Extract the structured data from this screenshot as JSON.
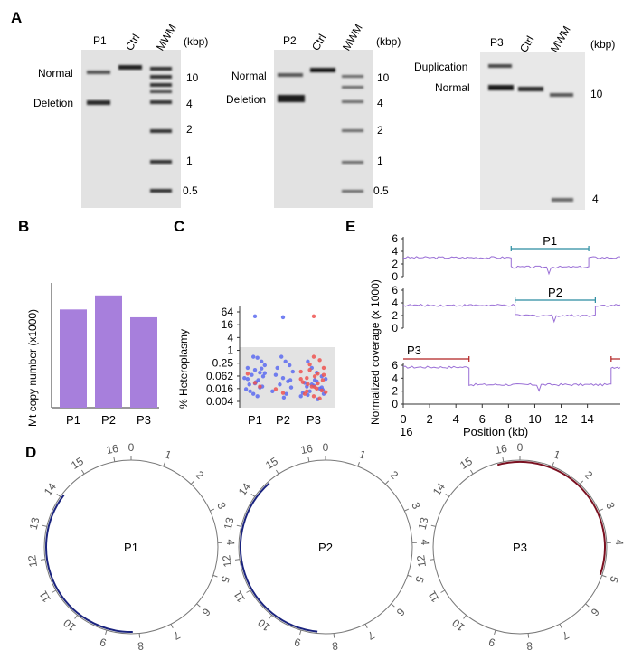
{
  "panel_labels": {
    "a": "A",
    "b": "B",
    "c": "C",
    "d": "D",
    "e": "E"
  },
  "gel_1": {
    "lanes": [
      "P1",
      "Ctrl",
      "MWM"
    ],
    "unit": "(kbp)",
    "band_labels": [
      "Normal",
      "Deletion"
    ],
    "ladder": [
      "10",
      "4",
      "2",
      "1",
      "0.5"
    ]
  },
  "gel_2": {
    "lanes": [
      "P2",
      "Ctrl",
      "MWM"
    ],
    "unit": "(kbp)",
    "band_labels": [
      "Normal",
      "Deletion"
    ],
    "ladder": [
      "10",
      "4",
      "2",
      "1",
      "0.5"
    ]
  },
  "gel_3": {
    "lanes": [
      "P3",
      "Ctrl",
      "MWM"
    ],
    "unit": "(kbp)",
    "band_labels": [
      "Duplication",
      "Normal"
    ],
    "ladder": [
      "10",
      "4"
    ]
  },
  "circles": [
    {
      "name": "P1",
      "ticks": [
        "0",
        "1",
        "2",
        "3",
        "4",
        "5",
        "6",
        "7",
        "8",
        "9",
        "10",
        "11",
        "12",
        "13",
        "14",
        "15",
        "16"
      ]
    },
    {
      "name": "P2",
      "ticks": [
        "0",
        "1",
        "2",
        "3",
        "4",
        "5",
        "6",
        "7",
        "8",
        "9",
        "10",
        "11",
        "12",
        "13",
        "14",
        "15",
        "16"
      ]
    },
    {
      "name": "P3",
      "ticks": [
        "0",
        "1",
        "2",
        "3",
        "4",
        "5",
        "6",
        "7",
        "8",
        "9",
        "10",
        "11",
        "12",
        "13",
        "14",
        "15",
        "16"
      ]
    }
  ],
  "colors": {
    "bar": "#a77fdc",
    "coverage": "#9a6fd6",
    "span_p1p2": "#2a8ca0",
    "span_p3": "#b02020",
    "arc_del": "#1a237e",
    "arc_dup": "#7a1020",
    "red_dot": "#ef5350",
    "blue_dot": "#5c6bf0"
  },
  "chart_data": [
    {
      "type": "bar",
      "title": "",
      "categories": [
        "P1",
        "P2",
        "P3"
      ],
      "values": [
        6.3,
        7.2,
        5.8
      ],
      "ylabel": "Mt copy number (x1000)",
      "xlabel": "",
      "ylim": [
        0,
        8
      ]
    },
    {
      "type": "scatter",
      "ylabel": "% Heteroplasmy",
      "categories": [
        "P1",
        "P2",
        "P3"
      ],
      "y_scale": "log",
      "y_ticks": [
        "64",
        "16",
        "4",
        "1",
        "0.25",
        "0.062",
        "0.016",
        "0.004"
      ],
      "shaded_range": [
        0.004,
        1
      ],
      "series": [
        {
          "name": "blue",
          "points": [
            {
              "group": "P1",
              "y": 40
            },
            {
              "group": "P1",
              "y": 0.5
            },
            {
              "group": "P1",
              "y": 0.45
            },
            {
              "group": "P1",
              "y": 0.3
            },
            {
              "group": "P1",
              "y": 0.2
            },
            {
              "group": "P1",
              "y": 0.15
            },
            {
              "group": "P1",
              "y": 0.12
            },
            {
              "group": "P1",
              "y": 0.09
            },
            {
              "group": "P1",
              "y": 0.07
            },
            {
              "group": "P1",
              "y": 0.06
            },
            {
              "group": "P1",
              "y": 0.05
            },
            {
              "group": "P1",
              "y": 0.04
            },
            {
              "group": "P1",
              "y": 0.032
            },
            {
              "group": "P1",
              "y": 0.025
            },
            {
              "group": "P1",
              "y": 0.02
            },
            {
              "group": "P1",
              "y": 0.015
            },
            {
              "group": "P1",
              "y": 0.012
            },
            {
              "group": "P1",
              "y": 0.009
            },
            {
              "group": "P1",
              "y": 0.007
            },
            {
              "group": "P1",
              "y": 0.14
            },
            {
              "group": "P1",
              "y": 0.085
            },
            {
              "group": "P1",
              "y": 0.045
            },
            {
              "group": "P1",
              "y": 0.028
            },
            {
              "group": "P1",
              "y": 0.018
            },
            {
              "group": "P2",
              "y": 36
            },
            {
              "group": "P2",
              "y": 0.5
            },
            {
              "group": "P2",
              "y": 0.3
            },
            {
              "group": "P2",
              "y": 0.2
            },
            {
              "group": "P2",
              "y": 0.1
            },
            {
              "group": "P2",
              "y": 0.07
            },
            {
              "group": "P2",
              "y": 0.05
            },
            {
              "group": "P2",
              "y": 0.035
            },
            {
              "group": "P2",
              "y": 0.025
            },
            {
              "group": "P2",
              "y": 0.018
            },
            {
              "group": "P2",
              "y": 0.012
            },
            {
              "group": "P2",
              "y": 0.009
            },
            {
              "group": "P2",
              "y": 0.006
            },
            {
              "group": "P2",
              "y": 0.15
            },
            {
              "group": "P2",
              "y": 0.04
            },
            {
              "group": "P3",
              "y": 0.3
            },
            {
              "group": "P3",
              "y": 0.15
            },
            {
              "group": "P3",
              "y": 0.09
            },
            {
              "group": "P3",
              "y": 0.06
            },
            {
              "group": "P3",
              "y": 0.045
            },
            {
              "group": "P3",
              "y": 0.03
            },
            {
              "group": "P3",
              "y": 0.022
            },
            {
              "group": "P3",
              "y": 0.016
            },
            {
              "group": "P3",
              "y": 0.012
            },
            {
              "group": "P3",
              "y": 0.009
            },
            {
              "group": "P3",
              "y": 0.007
            },
            {
              "group": "P3",
              "y": 0.005
            },
            {
              "group": "P3",
              "y": 0.04
            },
            {
              "group": "P3",
              "y": 0.02
            },
            {
              "group": "P3",
              "y": 0.014
            },
            {
              "group": "P3",
              "y": 0.01
            },
            {
              "group": "P3",
              "y": 0.008
            },
            {
              "group": "P3",
              "y": 0.025
            },
            {
              "group": "P3",
              "y": 0.035
            },
            {
              "group": "P3",
              "y": 0.018
            }
          ]
        },
        {
          "name": "red",
          "points": [
            {
              "group": "P1",
              "y": 0.08
            },
            {
              "group": "P1",
              "y": 0.03
            },
            {
              "group": "P1",
              "y": 0.02
            },
            {
              "group": "P2",
              "y": 0.015
            },
            {
              "group": "P2",
              "y": 0.01
            },
            {
              "group": "P3",
              "y": 40
            },
            {
              "group": "P3",
              "y": 0.5
            },
            {
              "group": "P3",
              "y": 0.35
            },
            {
              "group": "P3",
              "y": 0.22
            },
            {
              "group": "P3",
              "y": 0.15
            },
            {
              "group": "P3",
              "y": 0.1
            },
            {
              "group": "P3",
              "y": 0.08
            },
            {
              "group": "P3",
              "y": 0.06
            },
            {
              "group": "P3",
              "y": 0.05
            },
            {
              "group": "P3",
              "y": 0.04
            },
            {
              "group": "P3",
              "y": 0.032
            },
            {
              "group": "P3",
              "y": 0.026
            },
            {
              "group": "P3",
              "y": 0.02
            },
            {
              "group": "P3",
              "y": 0.016
            },
            {
              "group": "P3",
              "y": 0.013
            },
            {
              "group": "P3",
              "y": 0.011
            },
            {
              "group": "P3",
              "y": 0.009
            },
            {
              "group": "P3",
              "y": 0.007
            },
            {
              "group": "P3",
              "y": 0.0055
            },
            {
              "group": "P3",
              "y": 0.12
            },
            {
              "group": "P3",
              "y": 0.07
            },
            {
              "group": "P3",
              "y": 0.045
            },
            {
              "group": "P3",
              "y": 0.028
            },
            {
              "group": "P3",
              "y": 0.019
            },
            {
              "group": "P3",
              "y": 0.012
            }
          ]
        }
      ]
    },
    {
      "type": "line",
      "title": "",
      "xlabel": "Position (kb)",
      "ylabel": "Normalized coverage (x 1000)",
      "x_ticks": [
        "0",
        "2",
        "4",
        "6",
        "8",
        "10",
        "12",
        "14"
      ],
      "x_extra_label": "16",
      "xlim": [
        0,
        16.5
      ],
      "y_ticks": [
        "0",
        "2",
        "4",
        "6"
      ],
      "ylim": [
        0,
        6
      ],
      "tracks": [
        {
          "name": "P1",
          "segments": [
            {
              "x": [
                0,
                8.2
              ],
              "y": 3.0
            },
            {
              "x": [
                8.2,
                14.1
              ],
              "y": 1.5
            },
            {
              "x": [
                14.1,
                16.5
              ],
              "y": 3.0
            }
          ],
          "span": [
            8.2,
            14.1
          ]
        },
        {
          "name": "P2",
          "segments": [
            {
              "x": [
                0,
                8.5
              ],
              "y": 3.6
            },
            {
              "x": [
                8.5,
                14.6
              ],
              "y": 2.0
            },
            {
              "x": [
                14.6,
                16.5
              ],
              "y": 3.6
            }
          ],
          "span": [
            8.5,
            14.6
          ]
        },
        {
          "name": "P3",
          "segments": [
            {
              "x": [
                0,
                5.0
              ],
              "y": 5.7
            },
            {
              "x": [
                5.0,
                15.8
              ],
              "y": 3.0
            },
            {
              "x": [
                15.8,
                16.5
              ],
              "y": 5.7
            }
          ],
          "span": [
            0,
            5.0
          ],
          "span_wrap": [
            15.8,
            16.5
          ]
        }
      ]
    }
  ]
}
